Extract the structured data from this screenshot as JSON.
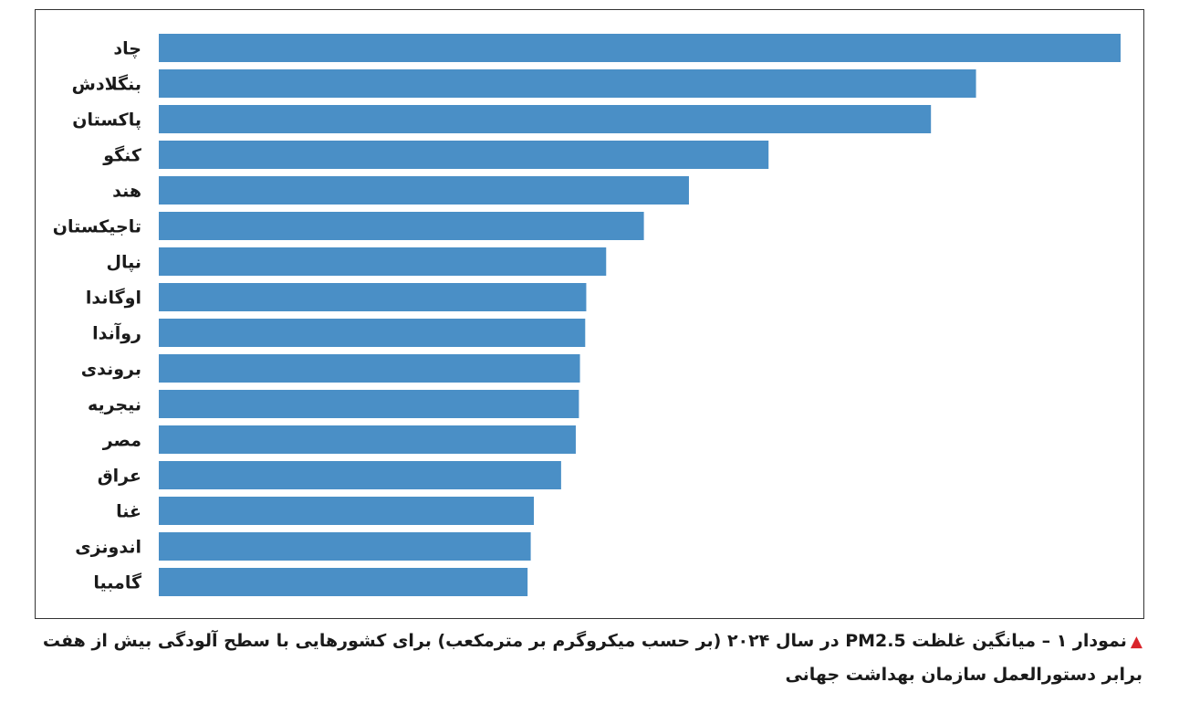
{
  "chart_data": {
    "type": "bar",
    "orientation": "horizontal",
    "categories": [
      "چاد",
      "بنگلادش",
      "پاکستان",
      "کنگو",
      "هند",
      "تاجیکستان",
      "نپال",
      "اوگاندا",
      "روآندا",
      "بروندی",
      "نیجریه",
      "مصر",
      "عراق",
      "غنا",
      "اندونزی",
      "گامبیا"
    ],
    "values": [
      91.8,
      78.0,
      73.7,
      58.2,
      50.6,
      46.3,
      42.7,
      40.8,
      40.7,
      40.2,
      40.1,
      39.8,
      38.4,
      35.8,
      35.5,
      35.2
    ],
    "xlim": [
      0,
      91.8
    ],
    "bar_color": "#4a8fc6",
    "grid": false,
    "legend": "none"
  },
  "caption": {
    "marker": "▲",
    "text": "نمودار ۱ – میانگین غلظت PM2.5 در سال ۲۰۲۴ (بر حسب میکروگرم بر مترمکعب) برای کشورهایی با سطح آلودگی بیش از هفت برابر دستورالعمل سازمان بهداشت جهانی",
    "marker_color": "#d9232a"
  }
}
